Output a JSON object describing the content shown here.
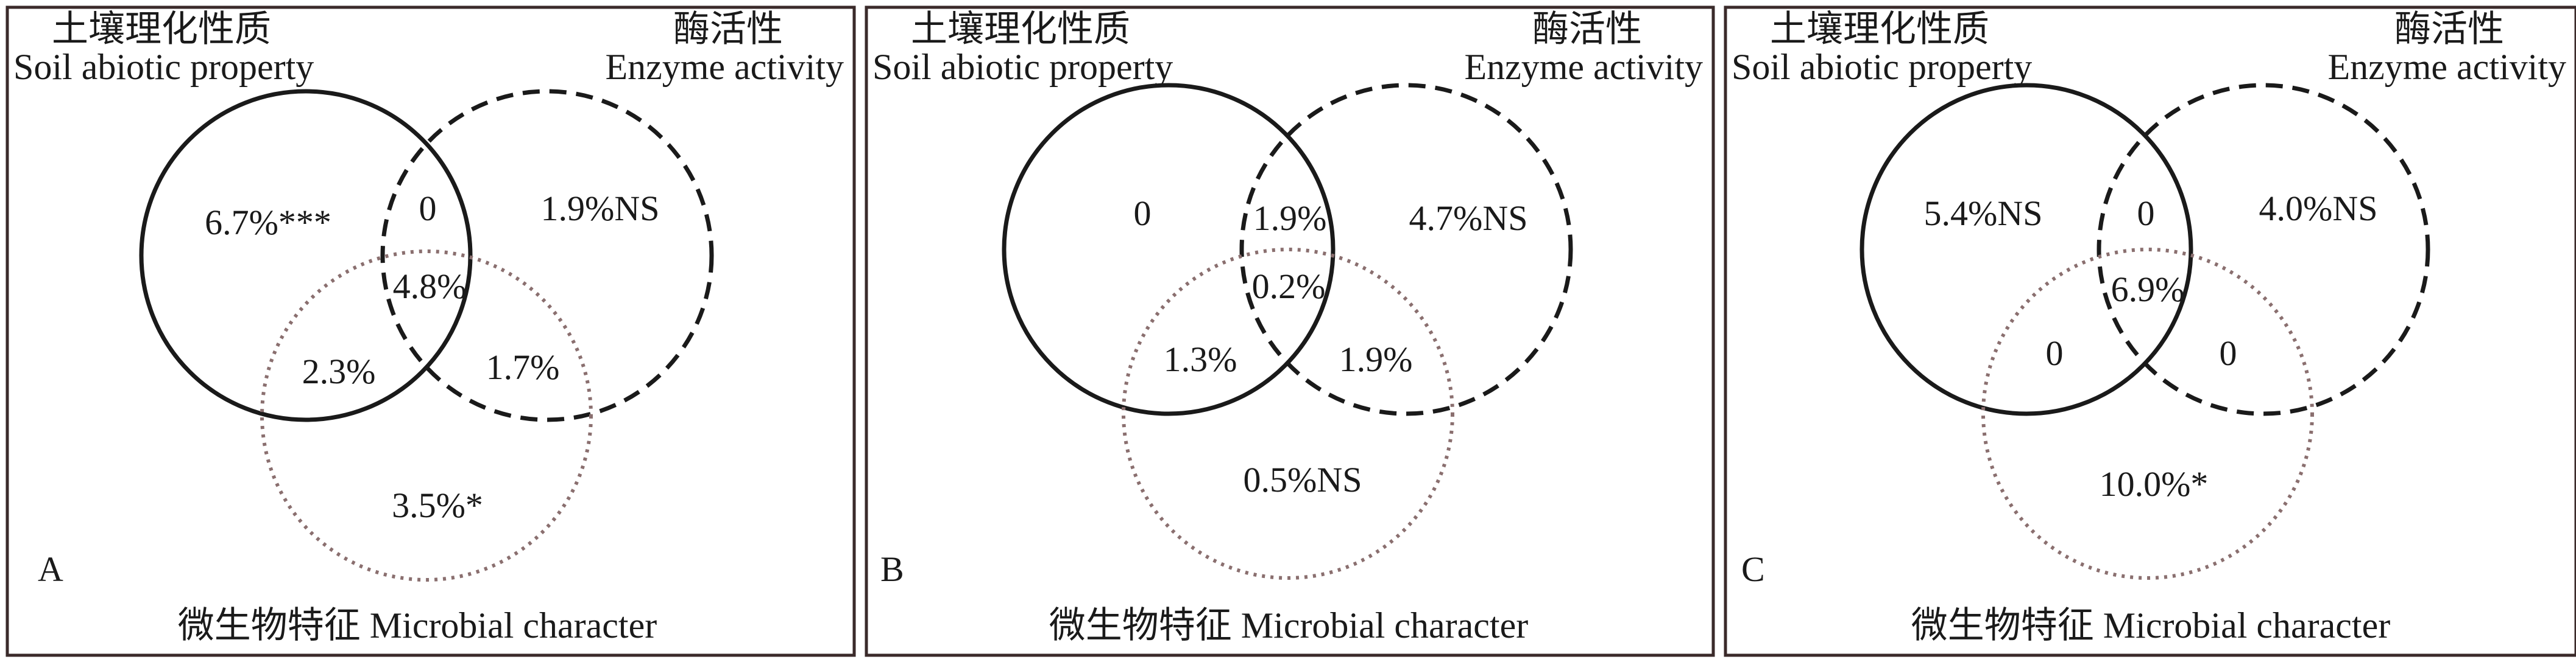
{
  "panels": [
    {
      "letter": "A",
      "title_left_cn": "土壤理化性质",
      "title_left_en": "Soil abiotic property",
      "title_right_cn": "酶活性",
      "title_right_en": "Enzyme activity",
      "bottom_label": "微生物特征 Microbial character",
      "values": {
        "soil_only": "6.7%***",
        "enzyme_only": "1.9%NS",
        "soil_enzyme": "0",
        "center": "4.8%",
        "soil_microbial": "2.3%",
        "enzyme_microbial": "1.7%",
        "microbial_only": "3.5%*"
      }
    },
    {
      "letter": "B",
      "title_left_cn": "土壤理化性质",
      "title_left_en": "Soil abiotic property",
      "title_right_cn": "酶活性",
      "title_right_en": "Enzyme activity",
      "bottom_label": "微生物特征 Microbial character",
      "values": {
        "soil_only": "0",
        "enzyme_only": "4.7%NS",
        "soil_enzyme": "1.9%",
        "center": "0.2%",
        "soil_microbial": "1.3%",
        "enzyme_microbial": "1.9%",
        "microbial_only": "0.5%NS"
      }
    },
    {
      "letter": "C",
      "title_left_cn": "土壤理化性质",
      "title_left_en": "Soil abiotic property",
      "title_right_cn": "酶活性",
      "title_right_en": "Enzyme activity",
      "bottom_label": "微生物特征 Microbial character",
      "values": {
        "soil_only": "5.4%NS",
        "enzyme_only": "4.0%NS",
        "soil_enzyme": "0",
        "center": "6.9%",
        "soil_microbial": "0",
        "enzyme_microbial": "0",
        "microbial_only": "10.0%*"
      }
    }
  ],
  "colors": {
    "soil_circle": "#1a1a1a",
    "enzyme_circle": "#1a1a1a",
    "microbial_circle": "#8a6f6f",
    "panel_border": "#3a2a2a"
  }
}
